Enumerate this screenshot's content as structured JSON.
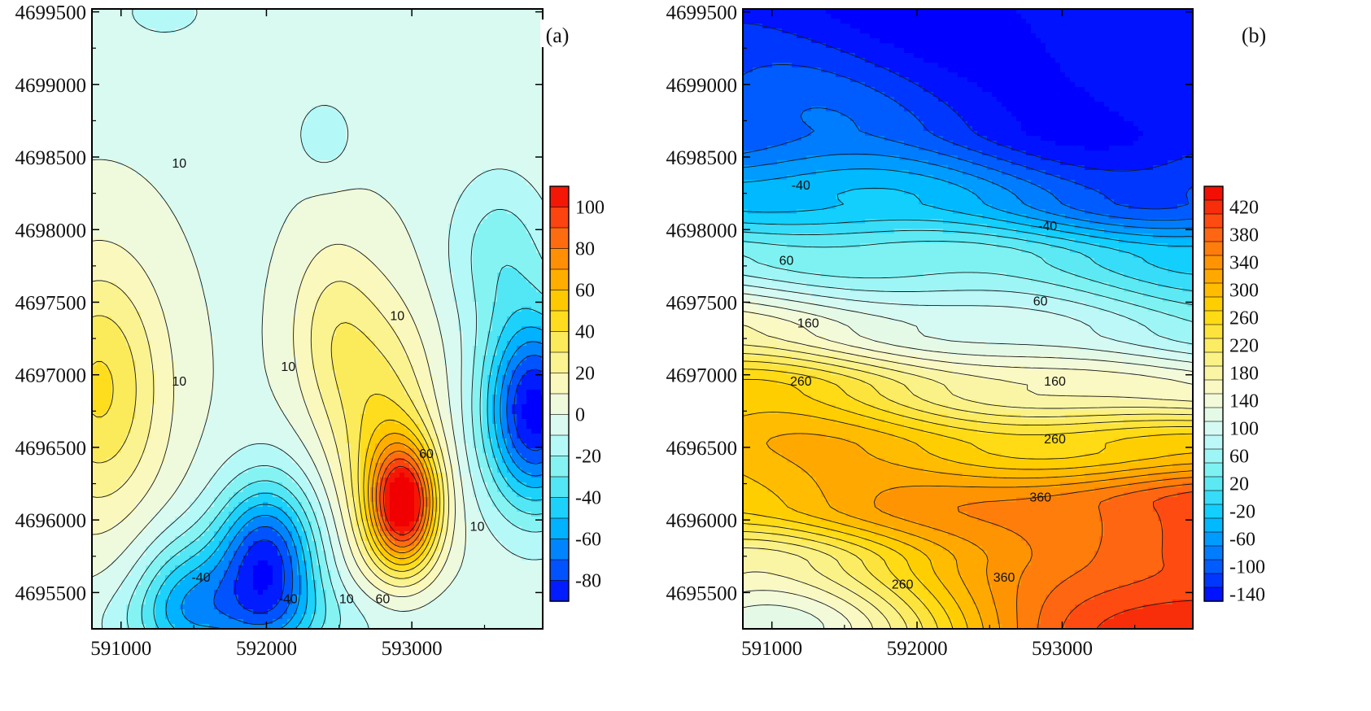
{
  "chart_data": [
    {
      "type": "heatmap",
      "subtype": "filled-contour",
      "panel_label": "(a)",
      "title": "",
      "xlabel": "",
      "ylabel": "",
      "xlim": [
        590800,
        593900
      ],
      "ylim": [
        4695250,
        4699520
      ],
      "x_ticks": [
        "591000",
        "592000",
        "593000"
      ],
      "y_ticks": [
        "4695500",
        "4696000",
        "4696500",
        "4697000",
        "4697500",
        "4698000",
        "4698500",
        "4699000",
        "4699500"
      ],
      "contour_step": 10,
      "colorbar": {
        "range": [
          -90,
          110
        ],
        "labels": [
          "100",
          "80",
          "60",
          "40",
          "20",
          "0",
          "-20",
          "-40",
          "-60",
          "-80"
        ]
      },
      "contour_labels": [
        {
          "text": "10",
          "x": 591400,
          "y": 4698450
        },
        {
          "text": "10",
          "x": 591400,
          "y": 4696950
        },
        {
          "text": "10",
          "x": 592150,
          "y": 4697050
        },
        {
          "text": "10",
          "x": 592900,
          "y": 4697400
        },
        {
          "text": "60",
          "x": 593100,
          "y": 4696450
        },
        {
          "text": "10",
          "x": 593450,
          "y": 4695950
        },
        {
          "text": "-40",
          "x": 591550,
          "y": 4695600
        },
        {
          "text": "-40",
          "x": 592150,
          "y": 4695450
        },
        {
          "text": "10",
          "x": 592550,
          "y": 4695450
        },
        {
          "text": "60",
          "x": 592800,
          "y": 4695450
        }
      ],
      "features": [
        {
          "kind": "max",
          "value": 102,
          "x": 592950,
          "y": 4696100,
          "sx": 230,
          "sy": 420
        },
        {
          "kind": "ridge",
          "value": 38,
          "x": 592800,
          "y": 4696550,
          "sx": 350,
          "sy": 900
        },
        {
          "kind": "ridge",
          "value": 22,
          "x": 592450,
          "y": 4697300,
          "sx": 300,
          "sy": 650
        },
        {
          "kind": "min",
          "value": -85,
          "x": 592000,
          "y": 4695700,
          "sx": 350,
          "sy": 550
        },
        {
          "kind": "min",
          "value": -45,
          "x": 591450,
          "y": 4695450,
          "sx": 350,
          "sy": 450
        },
        {
          "kind": "min",
          "value": -95,
          "x": 593850,
          "y": 4696750,
          "sx": 350,
          "sy": 650
        },
        {
          "kind": "max",
          "value": 42,
          "x": 590850,
          "y": 4696900,
          "sx": 450,
          "sy": 900
        },
        {
          "kind": "min",
          "value": -18,
          "x": 592400,
          "y": 4698650,
          "sx": 200,
          "sy": 250
        },
        {
          "kind": "min",
          "value": -14,
          "x": 591300,
          "y": 4699500,
          "sx": 350,
          "sy": 220
        },
        {
          "kind": "min",
          "value": -25,
          "x": 593600,
          "y": 4697850,
          "sx": 350,
          "sy": 550
        },
        {
          "kind": "min",
          "value": -20,
          "x": 592000,
          "y": 4695300,
          "sx": 1200,
          "sy": 300
        }
      ],
      "base_value": -2
    },
    {
      "type": "heatmap",
      "subtype": "filled-contour",
      "panel_label": "(b)",
      "title": "",
      "xlabel": "",
      "ylabel": "",
      "xlim": [
        590800,
        593900
      ],
      "ylim": [
        4695250,
        4699520
      ],
      "x_ticks": [
        "591000",
        "592000",
        "593000"
      ],
      "y_ticks": [
        "4695500",
        "4696000",
        "4696500",
        "4697000",
        "4697500",
        "4698000",
        "4698500",
        "4699000",
        "4699500"
      ],
      "contour_step": 20,
      "colorbar": {
        "range": [
          -150,
          450
        ],
        "labels": [
          "420",
          "380",
          "340",
          "300",
          "260",
          "220",
          "180",
          "140",
          "100",
          "60",
          "20",
          "-20",
          "-60",
          "-100",
          "-140"
        ]
      },
      "contour_labels": [
        {
          "text": "-40",
          "x": 591200,
          "y": 4698300
        },
        {
          "text": "-40",
          "x": 592900,
          "y": 4698020
        },
        {
          "text": "60",
          "x": 591100,
          "y": 4697780
        },
        {
          "text": "60",
          "x": 592850,
          "y": 4697500
        },
        {
          "text": "160",
          "x": 591250,
          "y": 4697350
        },
        {
          "text": "160",
          "x": 592950,
          "y": 4696950
        },
        {
          "text": "260",
          "x": 591200,
          "y": 4696950
        },
        {
          "text": "260",
          "x": 592950,
          "y": 4696550
        },
        {
          "text": "360",
          "x": 592850,
          "y": 4696150
        },
        {
          "text": "360",
          "x": 592600,
          "y": 4695600
        },
        {
          "text": "260",
          "x": 591900,
          "y": 4695550
        }
      ],
      "profile_rows": [
        {
          "y": 4699520,
          "west": -150,
          "east": -150
        },
        {
          "y": 4698700,
          "west": -100,
          "east": -150
        },
        {
          "y": 4698200,
          "west": -20,
          "east": -100
        },
        {
          "y": 4697800,
          "west": 60,
          "east": 0
        },
        {
          "y": 4697300,
          "west": 160,
          "east": 60
        },
        {
          "y": 4696900,
          "west": 260,
          "east": 140
        },
        {
          "y": 4696500,
          "west": 300,
          "east": 270
        },
        {
          "y": 4696100,
          "west": 290,
          "east": 400
        },
        {
          "y": 4695700,
          "west": 190,
          "east": 410
        },
        {
          "y": 4695250,
          "west": 120,
          "east": 440
        }
      ]
    }
  ]
}
